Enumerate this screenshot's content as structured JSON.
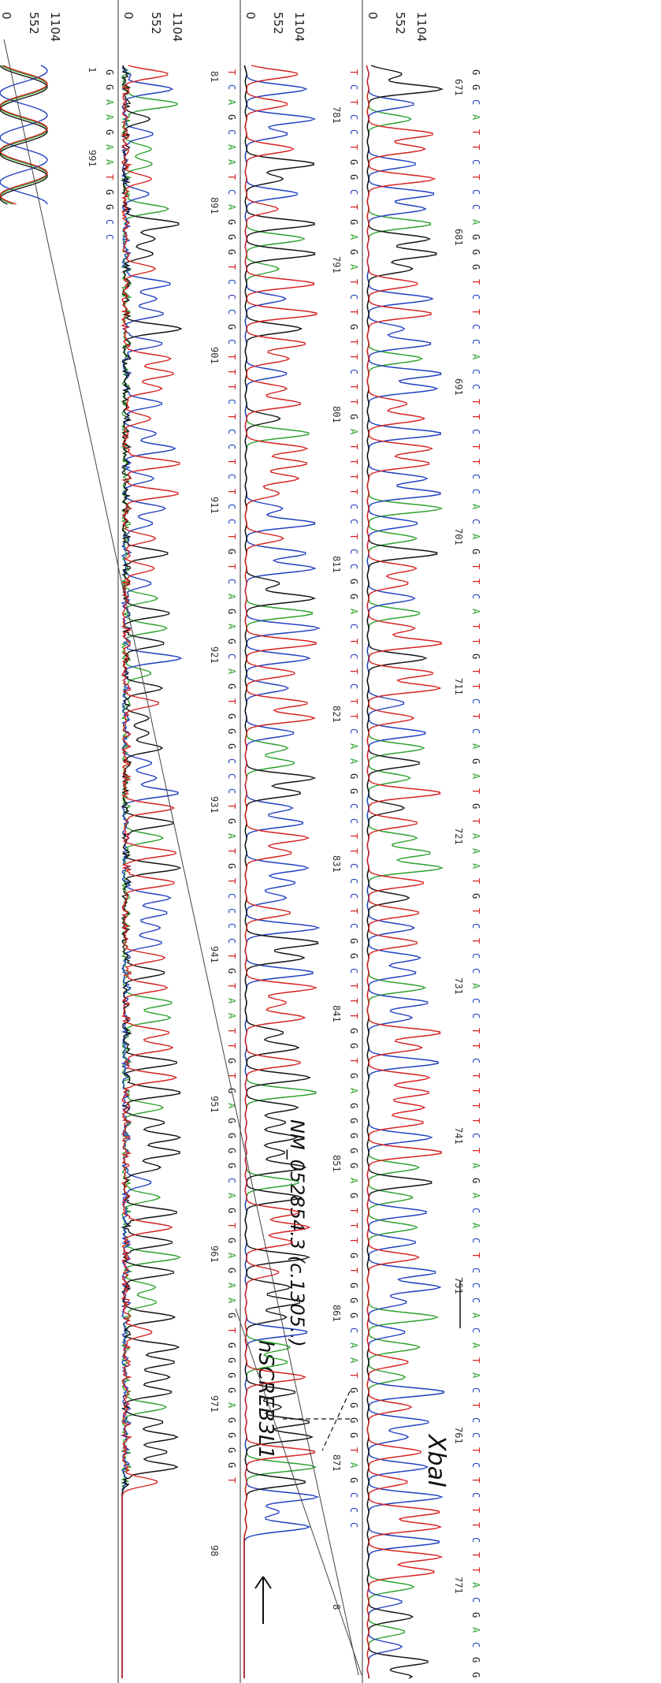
{
  "rows": [
    {
      "axis": [
        1104,
        552,
        0
      ],
      "sequence": "GGCATTCTCCAGGGTCTCCACCTTCTTCCACAGTTCATTGTTCTCAGATGTAAATGTCTCCACCTTCTTTTCTAGACACTCCCACATACTCCTCTCTTCTTACGACGGC",
      "positions": [
        671,
        681,
        691,
        701,
        711,
        721,
        731,
        741,
        751,
        761,
        771
      ]
    },
    {
      "axis": [
        1104,
        552,
        0
      ],
      "sequence": "TCTCCTGGCTGAGATCTGTTCTTGATTTTCCTCCGGACTCTCTTCAAGGCCTTCCCTCGGCTTTGGTGAGGGGGAGTTTGTGGGCAATGGGGTAGCCC",
      "positions": [
        781,
        791,
        801,
        811,
        821,
        831,
        841,
        851,
        861,
        871,
        8
      ]
    },
    {
      "axis": [
        1104,
        552,
        0
      ],
      "sequence": "TCAGCAATCAGGGTCCCGCTTTCTCCTCTCCTGTCAGAGCAGTGGGCCCTGATGTCCCCTGTAATTGTGAGGGGCAGTGAGAAGTGGGGAGGGGT",
      "positions": [
        81,
        891,
        901,
        911,
        921,
        931,
        941,
        951,
        961,
        971,
        98
      ]
    },
    {
      "axis": [
        1104,
        552,
        0
      ],
      "sequence": "GGAAGAATGGCC",
      "positions": [
        1,
        991
      ]
    }
  ],
  "annotations": {
    "enzyme": "XbaI",
    "accession": "NM_052854.3  (c.1305..)",
    "gene": "hSCREB3L1"
  }
}
